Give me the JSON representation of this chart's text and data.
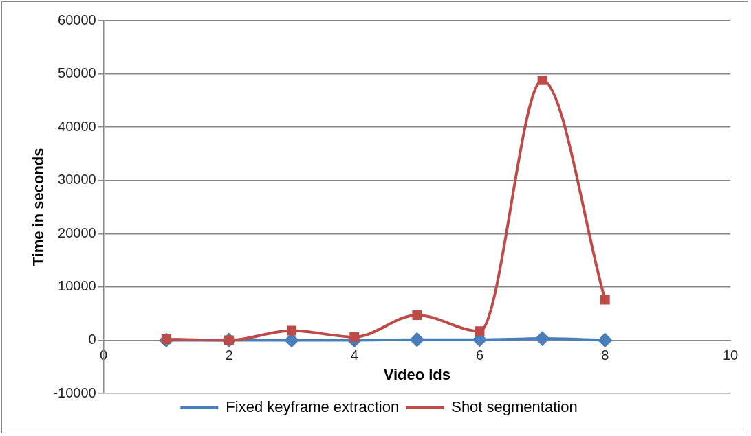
{
  "chart_data": {
    "type": "line",
    "xlabel": "Video Ids",
    "ylabel": "Time in seconds",
    "x": [
      1,
      2,
      3,
      4,
      5,
      6,
      7,
      8
    ],
    "series": [
      {
        "name": "Fixed keyframe extraction",
        "color": "#4a7ebb",
        "marker": "diamond",
        "values": [
          0,
          0,
          0,
          0,
          100,
          100,
          300,
          0
        ]
      },
      {
        "name": "Shot segmentation",
        "color": "#be4b48",
        "marker": "square",
        "values": [
          200,
          0,
          1800,
          600,
          4700,
          1700,
          48800,
          7600
        ]
      }
    ],
    "xlim": [
      0,
      10
    ],
    "xticks": [
      0,
      2,
      4,
      6,
      8,
      10
    ],
    "ylim": [
      -10000,
      60000
    ],
    "yticks": [
      -10000,
      0,
      10000,
      20000,
      30000,
      40000,
      50000,
      60000
    ],
    "grid": "y",
    "legend": "bottom"
  }
}
